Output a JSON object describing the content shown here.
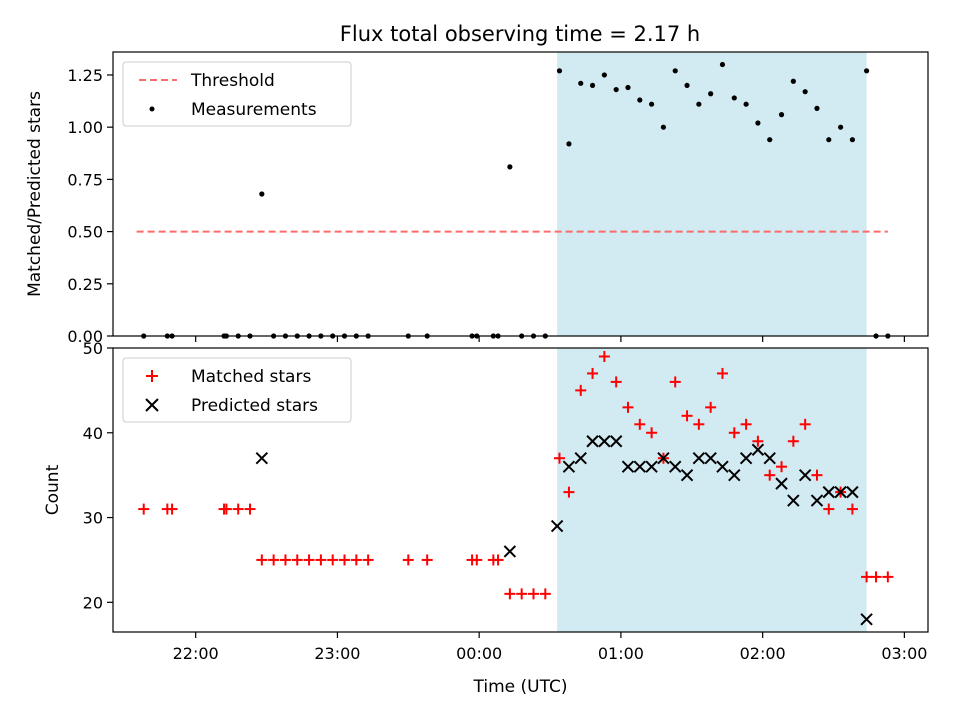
{
  "figure": {
    "title": "Flux total observing time = 2.17 h"
  },
  "chart_data": [
    {
      "type": "scatter",
      "panel": "top",
      "title": "Flux total observing time = 2.17 h",
      "ylabel": "Matched/Predicted stars",
      "xlabel": "",
      "xlim": [
        "21:25",
        "03:10"
      ],
      "ylim": [
        0,
        1.36
      ],
      "yticks": [
        0.0,
        0.25,
        0.5,
        0.75,
        1.0,
        1.25
      ],
      "ytick_labels": [
        "0.00",
        "0.25",
        "0.50",
        "0.75",
        "1.00",
        "1.25"
      ],
      "xticks": [
        "22:00",
        "23:00",
        "00:00",
        "01:00",
        "02:00",
        "03:00"
      ],
      "shaded_interval": [
        "00:33",
        "02:44"
      ],
      "shade_color": "#add8e6",
      "legend_position": "upper left",
      "legend": [
        {
          "label": "Threshold",
          "style": "dashed-line",
          "color": "#ff6b6b"
        },
        {
          "label": "Measurements",
          "style": "dot",
          "color": "#000000"
        }
      ],
      "threshold": {
        "name": "Threshold",
        "y": 0.5,
        "x_start": "21:35",
        "x_end": "02:53"
      },
      "series": [
        {
          "name": "Measurements",
          "marker": "dot",
          "color": "#000000",
          "points": [
            [
              "21:38",
              0.0
            ],
            [
              "21:48",
              0.0
            ],
            [
              "21:50",
              0.0
            ],
            [
              "22:12",
              0.0
            ],
            [
              "22:13",
              0.0
            ],
            [
              "22:18",
              0.0
            ],
            [
              "22:23",
              0.0
            ],
            [
              "22:28",
              0.68
            ],
            [
              "22:33",
              0.0
            ],
            [
              "22:38",
              0.0
            ],
            [
              "22:43",
              0.0
            ],
            [
              "22:48",
              0.0
            ],
            [
              "22:53",
              0.0
            ],
            [
              "22:58",
              0.0
            ],
            [
              "23:03",
              0.0
            ],
            [
              "23:08",
              0.0
            ],
            [
              "23:13",
              0.0
            ],
            [
              "23:30",
              0.0
            ],
            [
              "23:38",
              0.0
            ],
            [
              "23:57",
              0.0
            ],
            [
              "23:59",
              0.0
            ],
            [
              "00:06",
              0.0
            ],
            [
              "00:08",
              0.0
            ],
            [
              "00:13",
              0.81
            ],
            [
              "00:18",
              0.0
            ],
            [
              "00:23",
              0.0
            ],
            [
              "00:28",
              0.0
            ],
            [
              "00:34",
              1.27
            ],
            [
              "00:38",
              0.92
            ],
            [
              "00:43",
              1.21
            ],
            [
              "00:48",
              1.2
            ],
            [
              "00:53",
              1.25
            ],
            [
              "00:58",
              1.18
            ],
            [
              "01:03",
              1.19
            ],
            [
              "01:08",
              1.13
            ],
            [
              "01:13",
              1.11
            ],
            [
              "01:18",
              1.0
            ],
            [
              "01:23",
              1.27
            ],
            [
              "01:28",
              1.2
            ],
            [
              "01:33",
              1.11
            ],
            [
              "01:38",
              1.16
            ],
            [
              "01:43",
              1.3
            ],
            [
              "01:48",
              1.14
            ],
            [
              "01:53",
              1.11
            ],
            [
              "01:58",
              1.02
            ],
            [
              "02:03",
              0.94
            ],
            [
              "02:08",
              1.06
            ],
            [
              "02:13",
              1.22
            ],
            [
              "02:18",
              1.17
            ],
            [
              "02:23",
              1.09
            ],
            [
              "02:28",
              0.94
            ],
            [
              "02:33",
              1.0
            ],
            [
              "02:38",
              0.94
            ],
            [
              "02:44",
              1.27
            ],
            [
              "02:48",
              0.0
            ],
            [
              "02:53",
              0.0
            ]
          ]
        }
      ]
    },
    {
      "type": "scatter",
      "panel": "bottom",
      "title": "",
      "ylabel": "Count",
      "xlabel": "Time (UTC)",
      "xlim": [
        "21:25",
        "03:10"
      ],
      "ylim": [
        16.5,
        50
      ],
      "yticks": [
        20,
        30,
        40,
        50
      ],
      "ytick_labels": [
        "20",
        "30",
        "40",
        "50"
      ],
      "xticks": [
        "22:00",
        "23:00",
        "00:00",
        "01:00",
        "02:00",
        "03:00"
      ],
      "xtick_labels": [
        "22:00",
        "23:00",
        "00:00",
        "01:00",
        "02:00",
        "03:00"
      ],
      "shaded_interval": [
        "00:33",
        "02:44"
      ],
      "shade_color": "#add8e6",
      "legend_position": "upper left",
      "legend": [
        {
          "label": "Matched stars",
          "style": "plus",
          "color": "#ff0000"
        },
        {
          "label": "Predicted stars",
          "style": "x",
          "color": "#000000"
        }
      ],
      "series": [
        {
          "name": "Matched stars",
          "marker": "plus",
          "color": "#ff0000",
          "points": [
            [
              "21:38",
              31
            ],
            [
              "21:48",
              31
            ],
            [
              "21:50",
              31
            ],
            [
              "22:12",
              31
            ],
            [
              "22:13",
              31
            ],
            [
              "22:18",
              31
            ],
            [
              "22:23",
              31
            ],
            [
              "22:28",
              25
            ],
            [
              "22:33",
              25
            ],
            [
              "22:38",
              25
            ],
            [
              "22:43",
              25
            ],
            [
              "22:48",
              25
            ],
            [
              "22:53",
              25
            ],
            [
              "22:58",
              25
            ],
            [
              "23:03",
              25
            ],
            [
              "23:08",
              25
            ],
            [
              "23:13",
              25
            ],
            [
              "23:30",
              25
            ],
            [
              "23:38",
              25
            ],
            [
              "23:57",
              25
            ],
            [
              "23:59",
              25
            ],
            [
              "00:06",
              25
            ],
            [
              "00:08",
              25
            ],
            [
              "00:13",
              21
            ],
            [
              "00:18",
              21
            ],
            [
              "00:23",
              21
            ],
            [
              "00:28",
              21
            ],
            [
              "00:34",
              37
            ],
            [
              "00:38",
              33
            ],
            [
              "00:43",
              45
            ],
            [
              "00:48",
              47
            ],
            [
              "00:53",
              49
            ],
            [
              "00:58",
              46
            ],
            [
              "01:03",
              43
            ],
            [
              "01:08",
              41
            ],
            [
              "01:13",
              40
            ],
            [
              "01:18",
              37
            ],
            [
              "01:23",
              46
            ],
            [
              "01:28",
              42
            ],
            [
              "01:33",
              41
            ],
            [
              "01:38",
              43
            ],
            [
              "01:43",
              47
            ],
            [
              "01:48",
              40
            ],
            [
              "01:53",
              41
            ],
            [
              "01:58",
              39
            ],
            [
              "02:03",
              35
            ],
            [
              "02:08",
              36
            ],
            [
              "02:13",
              39
            ],
            [
              "02:18",
              41
            ],
            [
              "02:23",
              35
            ],
            [
              "02:28",
              31
            ],
            [
              "02:33",
              33
            ],
            [
              "02:38",
              31
            ],
            [
              "02:44",
              23
            ],
            [
              "02:48",
              23
            ],
            [
              "02:53",
              23
            ]
          ]
        },
        {
          "name": "Predicted stars",
          "marker": "x",
          "color": "#000000",
          "points": [
            [
              "22:28",
              37
            ],
            [
              "00:13",
              26
            ],
            [
              "00:33",
              29
            ],
            [
              "00:38",
              36
            ],
            [
              "00:43",
              37
            ],
            [
              "00:48",
              39
            ],
            [
              "00:53",
              39
            ],
            [
              "00:58",
              39
            ],
            [
              "01:03",
              36
            ],
            [
              "01:08",
              36
            ],
            [
              "01:13",
              36
            ],
            [
              "01:18",
              37
            ],
            [
              "01:23",
              36
            ],
            [
              "01:28",
              35
            ],
            [
              "01:33",
              37
            ],
            [
              "01:38",
              37
            ],
            [
              "01:43",
              36
            ],
            [
              "01:48",
              35
            ],
            [
              "01:53",
              37
            ],
            [
              "01:58",
              38
            ],
            [
              "02:03",
              37
            ],
            [
              "02:08",
              34
            ],
            [
              "02:13",
              32
            ],
            [
              "02:18",
              35
            ],
            [
              "02:23",
              32
            ],
            [
              "02:28",
              33
            ],
            [
              "02:33",
              33
            ],
            [
              "02:38",
              33
            ],
            [
              "02:44",
              18
            ]
          ]
        }
      ]
    }
  ]
}
